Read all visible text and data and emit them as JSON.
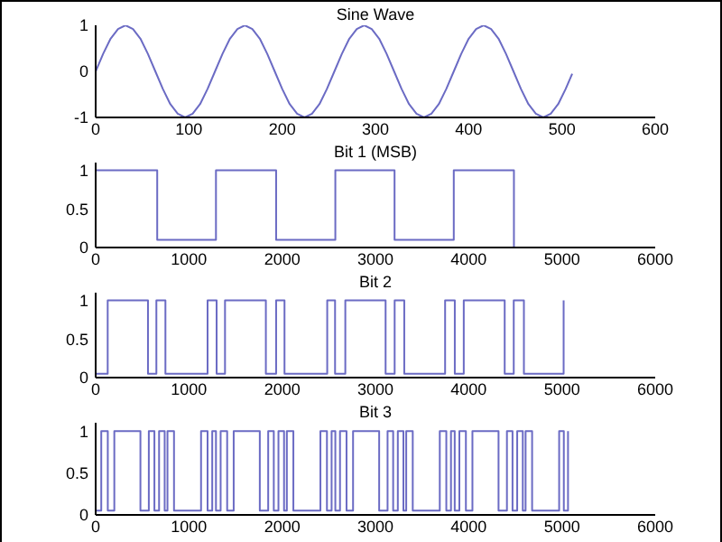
{
  "chart_data": [
    {
      "type": "line",
      "title": "Sine Wave",
      "x": [
        0,
        8,
        16,
        24,
        32,
        40,
        48,
        56,
        64,
        72,
        80,
        88,
        96,
        104,
        112,
        120,
        128,
        136,
        144,
        152,
        160,
        168,
        176,
        184,
        192,
        200,
        208,
        216,
        224,
        232,
        240,
        248,
        256,
        264,
        272,
        280,
        288,
        296,
        304,
        312,
        320,
        328,
        336,
        344,
        352,
        360,
        368,
        376,
        384,
        392,
        400,
        408,
        416,
        424,
        432,
        440,
        448,
        456,
        464,
        472,
        480,
        488,
        496,
        504,
        511
      ],
      "series": [
        {
          "color": "#6b6bc4",
          "values": [
            0,
            0.38,
            0.71,
            0.92,
            1,
            0.92,
            0.71,
            0.38,
            0,
            -0.38,
            -0.71,
            -0.92,
            -1,
            -0.92,
            -0.71,
            -0.38,
            0,
            0.38,
            0.71,
            0.92,
            1,
            0.92,
            0.71,
            0.38,
            0,
            -0.38,
            -0.71,
            -0.92,
            -1,
            -0.92,
            -0.71,
            -0.38,
            0,
            0.38,
            0.71,
            0.92,
            1,
            0.92,
            0.71,
            0.38,
            0,
            -0.38,
            -0.71,
            -0.92,
            -1,
            -0.92,
            -0.71,
            -0.38,
            0,
            0.38,
            0.71,
            0.92,
            1,
            0.92,
            0.71,
            0.38,
            0,
            -0.38,
            -0.71,
            -0.92,
            -1,
            -0.92,
            -0.71,
            -0.38,
            -0.05
          ]
        }
      ],
      "xlim": [
        0,
        600
      ],
      "xticks": [
        0,
        100,
        200,
        300,
        400,
        500,
        600
      ],
      "ylim": [
        -1,
        1
      ],
      "yticks": [
        -1,
        0,
        1
      ]
    },
    {
      "type": "step",
      "title": "Bit 1 (MSB)",
      "x": [
        0,
        660,
        1290,
        1935,
        2570,
        3205,
        3840,
        4485
      ],
      "series": [
        {
          "color": "#6b6bc4",
          "values": [
            1,
            0.1,
            1,
            0.1,
            1,
            0.1,
            1,
            0
          ]
        }
      ],
      "xlim": [
        0,
        6000
      ],
      "xticks": [
        0,
        1000,
        2000,
        3000,
        4000,
        5000,
        6000
      ],
      "ylim": [
        0,
        1.1
      ],
      "yticks": [
        0,
        0.5,
        1
      ]
    },
    {
      "type": "step",
      "title": "Bit 2",
      "x": [
        0,
        129,
        561,
        651,
        748,
        1200,
        1297,
        1387,
        1825,
        1935,
        2025,
        2483,
        2567,
        2677,
        3109,
        3206,
        3309,
        3747,
        3851,
        3947,
        4386,
        4483,
        4592,
        5018
      ],
      "series": [
        {
          "color": "#6b6bc4",
          "values": [
            0.05,
            1,
            0.05,
            1,
            0.05,
            1,
            0.05,
            1,
            0.05,
            1,
            0.05,
            1,
            0.05,
            1,
            0.05,
            1,
            0.05,
            1,
            0.05,
            1,
            0.05,
            1,
            0.05,
            1
          ]
        }
      ],
      "xlim": [
        0,
        6000
      ],
      "xticks": [
        0,
        1000,
        2000,
        3000,
        4000,
        5000,
        6000
      ],
      "ylim": [
        0,
        1.1
      ],
      "yticks": [
        0,
        0.5,
        1
      ]
    },
    {
      "type": "step",
      "title": "Bit 3",
      "x": [
        0,
        60,
        130,
        200,
        480,
        570,
        630,
        680,
        740,
        770,
        840,
        1130,
        1200,
        1250,
        1290,
        1340,
        1410,
        1480,
        1760,
        1850,
        1910,
        1960,
        2020,
        2050,
        2120,
        2410,
        2480,
        2530,
        2570,
        2620,
        2690,
        2760,
        3040,
        3130,
        3190,
        3240,
        3300,
        3330,
        3400,
        3690,
        3760,
        3810,
        3850,
        3900,
        3970,
        4040,
        4320,
        4410,
        4470,
        4520,
        4580,
        4610,
        4680,
        4970,
        5020,
        5065
      ],
      "series": [
        {
          "color": "#6b6bc4",
          "values": [
            0.05,
            1,
            0.05,
            1,
            0.05,
            1,
            0.05,
            1,
            0.05,
            1,
            0.05,
            1,
            0.05,
            1,
            0.05,
            1,
            0.05,
            1,
            0.05,
            1,
            0.05,
            1,
            0.05,
            1,
            0.05,
            1,
            0.05,
            1,
            0.05,
            1,
            0.05,
            1,
            0.05,
            1,
            0.05,
            1,
            0.05,
            1,
            0.05,
            1,
            0.05,
            1,
            0.05,
            1,
            0.05,
            1,
            0.05,
            1,
            0.05,
            1,
            0.05,
            1,
            0.05,
            1,
            0.05,
            1
          ]
        }
      ],
      "xlim": [
        0,
        6000
      ],
      "xticks": [
        0,
        1000,
        2000,
        3000,
        4000,
        5000,
        6000
      ],
      "ylim": [
        0,
        1.1
      ],
      "yticks": [
        0,
        0.5,
        1
      ]
    }
  ]
}
